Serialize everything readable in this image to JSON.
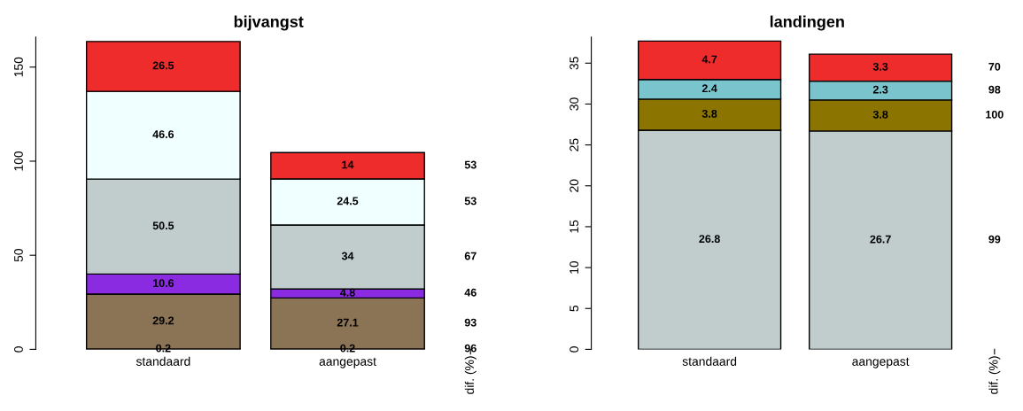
{
  "chart_data": [
    {
      "type": "bar",
      "title": "bijvangst",
      "stacked": true,
      "data_labels": true,
      "categories": [
        "standaard",
        "aangepast"
      ],
      "ylim": [
        0,
        166
      ],
      "yticks": [
        0,
        50,
        100,
        150
      ],
      "grid": false,
      "legend": false,
      "series": [
        {
          "color": "#cd853f",
          "values": [
            0.2,
            0.2
          ]
        },
        {
          "color": "#8b7355",
          "values": [
            29.2,
            27.1
          ]
        },
        {
          "color": "#8a2be2",
          "values": [
            10.6,
            4.8
          ]
        },
        {
          "color": "#c1cdcd",
          "values": [
            50.5,
            34
          ]
        },
        {
          "color": "#f0ffff",
          "values": [
            46.6,
            24.5
          ]
        },
        {
          "color": "#ee2c2c",
          "values": [
            26.5,
            14
          ]
        }
      ],
      "annotations": [
        "dif. (%)",
        "96",
        "93",
        "46",
        "67",
        "53",
        "53"
      ]
    },
    {
      "type": "bar",
      "title": "landingen",
      "stacked": true,
      "data_labels": true,
      "categories": [
        "standaard",
        "aangepast"
      ],
      "ylim": [
        0,
        38.2
      ],
      "yticks": [
        0,
        5,
        10,
        15,
        20,
        25,
        30,
        35
      ],
      "grid": false,
      "legend": false,
      "series": [
        {
          "color": "#c1cdcd",
          "values": [
            26.8,
            26.7
          ]
        },
        {
          "color": "#8b7500",
          "values": [
            3.8,
            3.8
          ]
        },
        {
          "color": "#7ac5cd",
          "values": [
            2.4,
            2.3
          ]
        },
        {
          "color": "#ee2c2c",
          "values": [
            4.7,
            3.3
          ]
        }
      ],
      "annotations": [
        "dif. (%)",
        "99",
        "100",
        "98",
        "70"
      ]
    }
  ]
}
